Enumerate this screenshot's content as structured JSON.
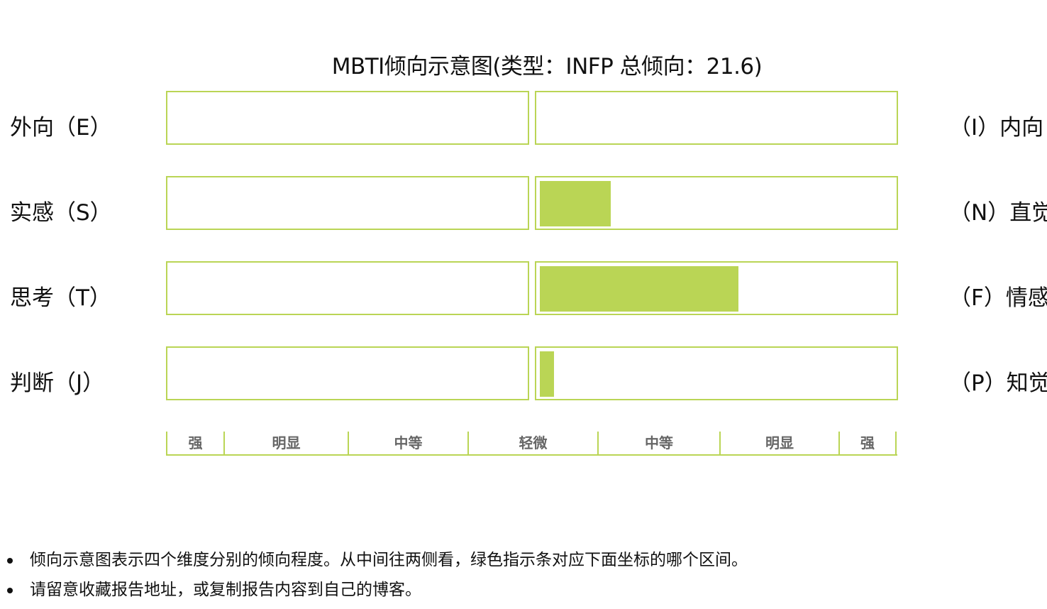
{
  "title": "MBTI倾向示意图(类型：INFP 总倾向：21.6)",
  "colors": {
    "accent": "#bad555",
    "box_border": "#bad555",
    "text": "#111111",
    "scale_text": "#666666"
  },
  "chart_data": {
    "type": "bar",
    "title": "MBTI倾向示意图(类型：INFP 总倾向：21.6)",
    "orientation": "horizontal-diverging",
    "range_per_side": [
      0,
      100
    ],
    "dimensions": [
      {
        "left_label": "外向（E）",
        "right_label": "（I）内向",
        "side": "right",
        "value": 0
      },
      {
        "left_label": "实感（S）",
        "right_label": "（N）直觉",
        "side": "right",
        "value": 20
      },
      {
        "left_label": "思考（T）",
        "right_label": "（F）情感",
        "side": "right",
        "value": 56
      },
      {
        "left_label": "判断（J）",
        "right_label": "（P）知觉",
        "side": "right",
        "value": 4
      }
    ],
    "scale_labels": [
      "强",
      "明显",
      "中等",
      "轻微",
      "中等",
      "明显",
      "强"
    ]
  },
  "notes": [
    "倾向示意图表示四个维度分别的倾向程度。从中间往两侧看，绿色指示条对应下面坐标的哪个区间。",
    "请留意收藏报告地址，或复制报告内容到自己的博客。"
  ]
}
